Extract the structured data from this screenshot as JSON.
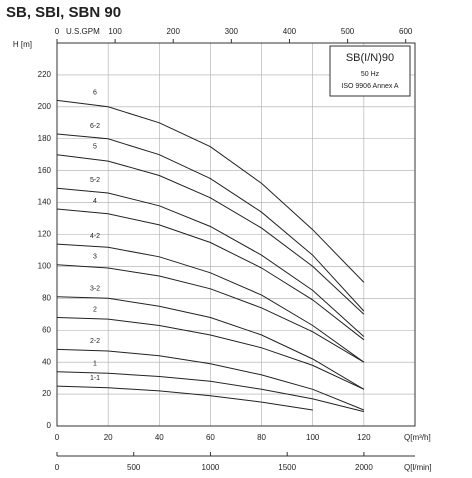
{
  "chart_data": {
    "type": "line",
    "title": "SB, SBI, SBN 90",
    "ylabel": "H [m]",
    "xlabel": "Q[m³/h]",
    "xlim": [
      0,
      140
    ],
    "xticks": [
      0,
      20,
      40,
      60,
      80,
      100,
      120
    ],
    "ylim": [
      0,
      240
    ],
    "yticks": [
      0,
      20,
      40,
      60,
      80,
      100,
      120,
      140,
      160,
      180,
      200,
      220
    ],
    "top_axis": {
      "label": "U.S.GPM",
      "lim": [
        0,
        616
      ],
      "ticks": [
        0,
        100,
        200,
        300,
        400,
        500,
        600
      ]
    },
    "bottom_axis2": {
      "label": "Q[l/min]",
      "lim": [
        0,
        2333
      ],
      "ticks": [
        0,
        500,
        1000,
        1500,
        2000
      ]
    },
    "box": {
      "title": "SB(I/N)90",
      "lines": [
        "50 Hz",
        "ISO 9906 Annex A"
      ]
    },
    "grid": true,
    "color": "#222222",
    "x": [
      0,
      20,
      40,
      60,
      80,
      100,
      120
    ],
    "series": [
      {
        "name": "6",
        "values": [
          204,
          200,
          190,
          175,
          152,
          123,
          90
        ]
      },
      {
        "name": "6-2",
        "values": [
          183,
          180,
          170,
          155,
          134,
          107,
          72
        ]
      },
      {
        "name": "5",
        "values": [
          170,
          166,
          157,
          143,
          124,
          100,
          70
        ]
      },
      {
        "name": "5-2",
        "values": [
          149,
          146,
          138,
          125,
          107,
          85,
          56
        ]
      },
      {
        "name": "4",
        "values": [
          136,
          133,
          126,
          115,
          99,
          79,
          54
        ]
      },
      {
        "name": "4-2",
        "values": [
          114,
          112,
          106,
          96,
          82,
          63,
          40
        ]
      },
      {
        "name": "3",
        "values": [
          101,
          99,
          94,
          86,
          74,
          59,
          40
        ]
      },
      {
        "name": "3-2",
        "values": [
          81,
          80,
          75,
          68,
          57,
          42,
          23
        ]
      },
      {
        "name": "2",
        "values": [
          68,
          67,
          63,
          57,
          49,
          38,
          23
        ]
      },
      {
        "name": "2-2",
        "values": [
          48,
          47,
          44,
          39,
          32,
          23,
          10
        ]
      },
      {
        "name": "1",
        "values": [
          34,
          33,
          31,
          28,
          23,
          17,
          9
        ]
      },
      {
        "name": "1-1",
        "values": [
          25,
          24,
          22,
          19,
          15,
          10,
          null
        ]
      }
    ]
  }
}
